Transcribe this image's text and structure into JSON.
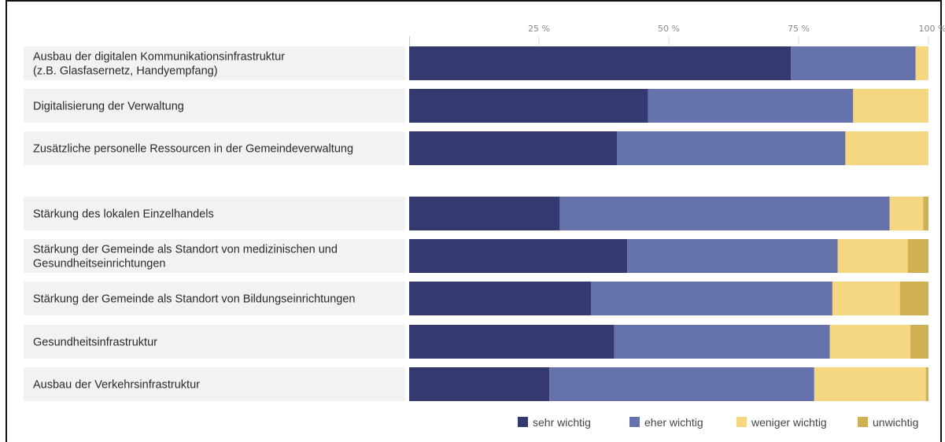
{
  "chart_data": {
    "type": "bar",
    "orientation": "horizontal",
    "stacked": true,
    "percent": true,
    "title": "",
    "xlabel": "",
    "ylabel": "",
    "xlim": [
      0,
      100
    ],
    "ticks": [
      {
        "value": 25,
        "label": "25 %"
      },
      {
        "value": 50,
        "label": "50 %"
      },
      {
        "value": 75,
        "label": "75 %"
      },
      {
        "value": 100,
        "label": "100 %"
      }
    ],
    "categories": [
      {
        "lines": [
          "Ausbau der digitalen Kommunikationsinfrastruktur",
          "(z.B. Glasfasernetz, Handyempfang)"
        ],
        "group": 0
      },
      {
        "lines": [
          "Digitalisierung der Verwaltung"
        ],
        "group": 0
      },
      {
        "lines": [
          "Zusätzliche personelle Ressourcen in der Gemeindeverwaltung"
        ],
        "group": 0
      },
      {
        "lines": [
          "Stärkung des lokalen Einzelhandels"
        ],
        "group": 1
      },
      {
        "lines": [
          "Stärkung der Gemeinde als Standort von medizinischen und",
          "Gesundheitseinrichtungen"
        ],
        "group": 1
      },
      {
        "lines": [
          "Stärkung der Gemeinde als Standort von Bildungseinrichtungen"
        ],
        "group": 1
      },
      {
        "lines": [
          "Gesundheitsinfrastruktur"
        ],
        "group": 1
      },
      {
        "lines": [
          "Ausbau der Verkehrsinfrastruktur"
        ],
        "group": 1
      }
    ],
    "series": [
      {
        "name": "sehr wichtig",
        "color": "#343a70",
        "values": [
          73.5,
          46,
          40,
          29,
          42,
          35,
          39.5,
          27
        ]
      },
      {
        "name": "eher wichtig",
        "color": "#6572ab",
        "values": [
          24,
          39.5,
          44,
          63.5,
          40.5,
          46.5,
          41.5,
          51
        ]
      },
      {
        "name": "weniger wichtig",
        "color": "#f5d681",
        "values": [
          2.5,
          14.5,
          16,
          6.5,
          13.5,
          13,
          15.5,
          21.5
        ]
      },
      {
        "name": "unwichtig",
        "color": "#cfb153",
        "values": [
          0,
          0,
          0,
          1,
          4,
          5.5,
          3.5,
          0.5
        ]
      }
    ],
    "legend": "bottom-right",
    "grid": false
  }
}
